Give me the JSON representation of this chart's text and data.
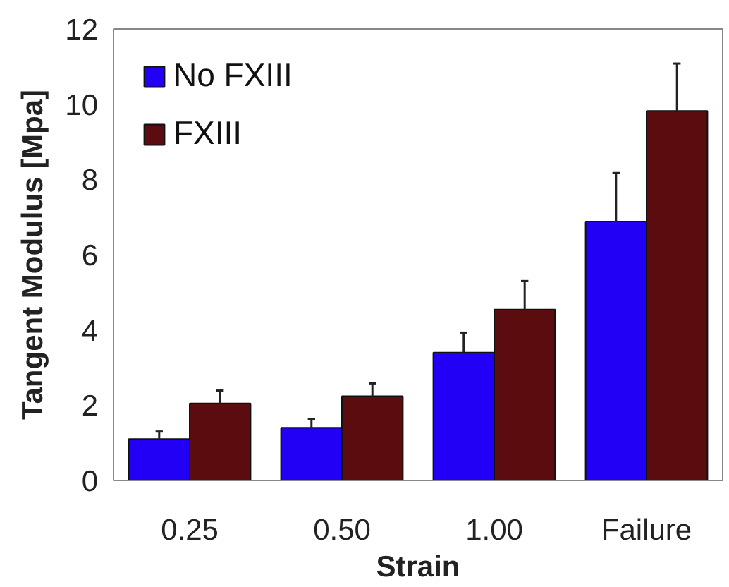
{
  "chart_data": {
    "type": "bar",
    "xlabel": "Strain",
    "ylabel": "Tangent Modulus [Mpa]",
    "categories": [
      "0.25",
      "0.50",
      "1.00",
      "Failure"
    ],
    "series": [
      {
        "name": "No FXIII",
        "color": "#2200f5",
        "values": [
          1.1,
          1.4,
          3.4,
          6.88
        ],
        "errors": [
          [
            1.1,
            1.3
          ],
          [
            1.4,
            1.64
          ],
          [
            3.4,
            3.93
          ],
          [
            6.88,
            8.17
          ]
        ]
      },
      {
        "name": "FXIII",
        "color": "#5a0c0e",
        "values": [
          2.05,
          2.24,
          4.54,
          9.82
        ],
        "errors": [
          [
            2.05,
            2.39
          ],
          [
            2.24,
            2.58
          ],
          [
            4.54,
            5.3
          ],
          [
            9.82,
            11.08
          ]
        ]
      }
    ],
    "ylim": [
      0,
      12
    ],
    "yticks": [
      0,
      2,
      4,
      6,
      8,
      10,
      12
    ],
    "grid": false,
    "legend": "top left"
  }
}
